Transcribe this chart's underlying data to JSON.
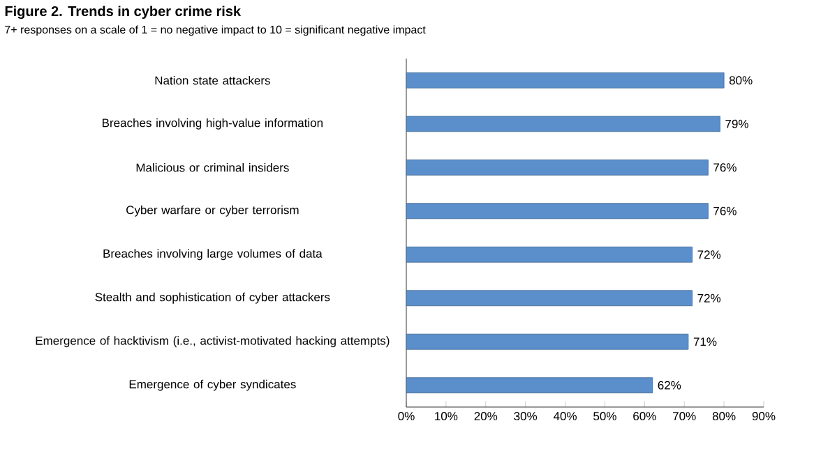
{
  "chart_data": {
    "type": "bar",
    "orientation": "horizontal",
    "title": "Figure 2. Trends in cyber crime risk",
    "subtitle": "7+ responses on a scale of 1 = no negative impact to 10 = significant negative impact",
    "categories": [
      "Nation state attackers",
      "Breaches involving high-value information",
      "Malicious or criminal insiders",
      "Cyber warfare or cyber terrorism",
      "Breaches involving large volumes of data",
      "Stealth and sophistication of cyber attackers",
      "Emergence of hacktivism (i.e., activist-motivated hacking attempts)",
      "Emergence of cyber syndicates"
    ],
    "values": [
      80,
      79,
      76,
      76,
      72,
      72,
      71,
      62
    ],
    "value_labels": [
      "80%",
      "79%",
      "76%",
      "76%",
      "72%",
      "72%",
      "71%",
      "62%"
    ],
    "color": "#5b8fcc",
    "xlim": [
      0,
      90
    ],
    "xticks": [
      {
        "value": 0,
        "label": "0%"
      },
      {
        "value": 10,
        "label": "10%"
      },
      {
        "value": 20,
        "label": "20%"
      },
      {
        "value": 30,
        "label": "30%"
      },
      {
        "value": 40,
        "label": "40%"
      },
      {
        "value": 50,
        "label": "50%"
      },
      {
        "value": 60,
        "label": "60%"
      },
      {
        "value": 70,
        "label": "70%"
      },
      {
        "value": 80,
        "label": "80%"
      },
      {
        "value": 90,
        "label": "90%"
      }
    ]
  }
}
